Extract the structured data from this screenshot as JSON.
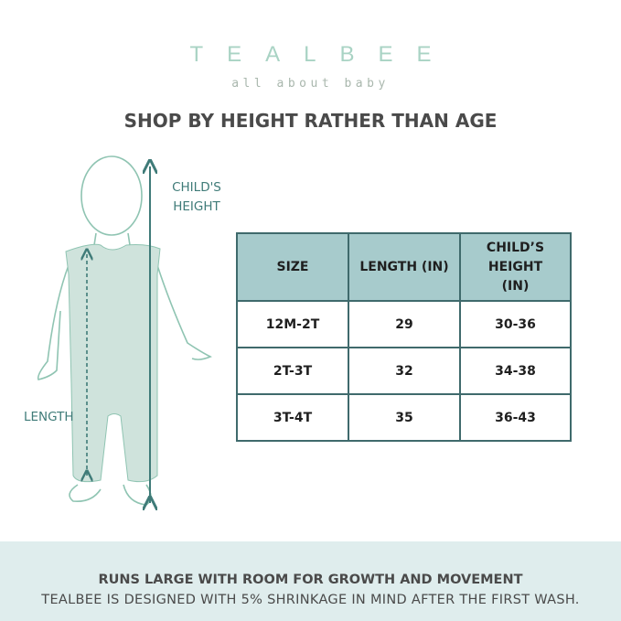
{
  "logo": {
    "brand": "TEALBEE",
    "tagline": "all about baby"
  },
  "title": "SHOP BY HEIGHT RATHER THAN AGE",
  "figure": {
    "height_label": "CHILD'S HEIGHT",
    "length_label": "LENGTH"
  },
  "table": {
    "headers": [
      "SIZE",
      "LENGTH (IN)",
      "CHILD’S HEIGHT (IN)"
    ],
    "rows": [
      [
        "12M-2T",
        "29",
        "30-36"
      ],
      [
        "2T-3T",
        "32",
        "34-38"
      ],
      [
        "3T-4T",
        "35",
        "36-43"
      ]
    ]
  },
  "footer": {
    "headline": "RUNS LARGE WITH ROOM FOR GROWTH AND MOVEMENT",
    "note": "TEALBEE IS DESIGNED WITH 5% SHRINKAGE IN MIND AFTER THE FIRST WASH."
  },
  "colors": {
    "teal": "#3f7b78",
    "header_bg": "#a7cbcc",
    "band": "#dfeded",
    "romper": "#cfe3dc"
  }
}
